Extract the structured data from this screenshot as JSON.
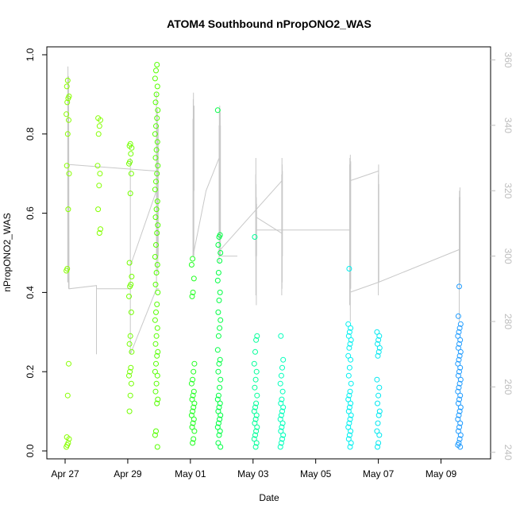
{
  "chart_data": {
    "type": "scatter",
    "title": "ATOM4 Southbound nPropONO2_WAS",
    "xlabel": "Date",
    "ylabel": "nPropONO2_WAS",
    "x_ticks": [
      {
        "date": "2018-04-27",
        "label": "Apr 27"
      },
      {
        "date": "2018-04-29",
        "label": "Apr 29"
      },
      {
        "date": "2018-05-01",
        "label": "May 01"
      },
      {
        "date": "2018-05-03",
        "label": "May 03"
      },
      {
        "date": "2018-05-05",
        "label": "May 05"
      },
      {
        "date": "2018-05-07",
        "label": "May 07"
      },
      {
        "date": "2018-05-09",
        "label": "May 09"
      }
    ],
    "xlim": [
      "2018-04-26T10:00",
      "2018-05-10T14:00"
    ],
    "ylim": [
      -0.02,
      1.02
    ],
    "y_ticks": [
      0.0,
      0.2,
      0.4,
      0.6,
      0.8,
      1.0
    ],
    "y_tick_labels": [
      "0.0",
      "0.2",
      "0.4",
      "0.6",
      "0.8",
      "1.0"
    ],
    "y2lim": [
      238,
      364
    ],
    "y2_ticks": [
      240,
      260,
      280,
      300,
      320,
      340,
      360
    ],
    "y2_tick_labels": [
      "240",
      "260",
      "280",
      "300",
      "320",
      "340",
      "360"
    ],
    "grid": false,
    "legend": "none",
    "colors": {
      "point_range": [
        "#7cfc00",
        "#00ff66",
        "#00f0f0",
        "#1e90ff"
      ],
      "trace": "#c8c8c8",
      "axis": "#000000",
      "right_axis": "#bdbdbd"
    },
    "point_clusters": [
      {
        "date": "2018-04-27T02:00",
        "color": "#88ff00",
        "values": [
          0.01,
          0.015,
          0.02,
          0.03,
          0.035,
          0.14,
          0.22,
          0.455,
          0.46,
          0.61,
          0.7,
          0.72,
          0.8,
          0.835,
          0.85,
          0.88,
          0.89,
          0.895,
          0.92,
          0.935
        ]
      },
      {
        "date": "2018-04-28T02:00",
        "color": "#84ff00",
        "values": [
          0.55,
          0.56,
          0.61,
          0.67,
          0.7,
          0.72,
          0.8,
          0.82,
          0.835,
          0.84
        ]
      },
      {
        "date": "2018-04-29T02:00",
        "color": "#73ff00",
        "values": [
          0.1,
          0.14,
          0.17,
          0.19,
          0.2,
          0.21,
          0.25,
          0.27,
          0.29,
          0.35,
          0.39,
          0.415,
          0.42,
          0.44,
          0.475,
          0.65,
          0.7,
          0.725,
          0.73,
          0.75,
          0.765,
          0.77,
          0.775
        ]
      },
      {
        "date": "2018-04-29T22:00",
        "color": "#55ff00",
        "values": [
          0.01,
          0.04,
          0.05,
          0.12,
          0.13,
          0.15,
          0.17,
          0.19,
          0.2,
          0.22,
          0.24,
          0.25,
          0.27,
          0.29,
          0.31,
          0.33,
          0.35,
          0.37,
          0.4,
          0.42,
          0.45,
          0.47,
          0.49,
          0.52,
          0.55,
          0.57,
          0.59,
          0.61,
          0.63,
          0.66,
          0.68,
          0.7,
          0.72,
          0.74,
          0.76,
          0.78,
          0.8,
          0.82,
          0.84,
          0.86,
          0.88,
          0.9,
          0.92,
          0.94,
          0.96,
          0.975
        ]
      },
      {
        "date": "2018-05-01T02:00",
        "color": "#22ff22",
        "values": [
          0.02,
          0.03,
          0.05,
          0.06,
          0.07,
          0.08,
          0.09,
          0.1,
          0.11,
          0.12,
          0.13,
          0.14,
          0.15,
          0.17,
          0.18,
          0.2,
          0.22,
          0.39,
          0.4,
          0.435,
          0.47,
          0.485
        ]
      },
      {
        "date": "2018-05-01T22:00",
        "color": "#00ff44",
        "values": [
          0.01,
          0.02,
          0.04,
          0.05,
          0.06,
          0.07,
          0.08,
          0.09,
          0.1,
          0.11,
          0.12,
          0.13,
          0.14,
          0.16,
          0.18,
          0.2,
          0.22,
          0.23,
          0.255,
          0.29,
          0.31,
          0.33,
          0.35,
          0.38,
          0.4,
          0.43,
          0.45,
          0.48,
          0.5,
          0.52,
          0.54,
          0.545,
          0.86
        ]
      },
      {
        "date": "2018-05-03T02:00",
        "color": "#00ff99",
        "values": [
          0.01,
          0.02,
          0.03,
          0.04,
          0.05,
          0.06,
          0.07,
          0.08,
          0.09,
          0.1,
          0.11,
          0.12,
          0.14,
          0.16,
          0.18,
          0.2,
          0.22,
          0.25,
          0.28,
          0.29,
          0.54
        ]
      },
      {
        "date": "2018-05-03T22:00",
        "color": "#00ffbb",
        "values": [
          0.01,
          0.02,
          0.03,
          0.04,
          0.05,
          0.06,
          0.07,
          0.08,
          0.09,
          0.1,
          0.11,
          0.12,
          0.13,
          0.15,
          0.17,
          0.19,
          0.21,
          0.23,
          0.29
        ]
      },
      {
        "date": "2018-05-06T02:00",
        "color": "#00f0f0",
        "values": [
          0.01,
          0.02,
          0.03,
          0.04,
          0.05,
          0.06,
          0.07,
          0.08,
          0.09,
          0.1,
          0.11,
          0.12,
          0.13,
          0.14,
          0.15,
          0.17,
          0.19,
          0.21,
          0.23,
          0.24,
          0.26,
          0.27,
          0.28,
          0.29,
          0.3,
          0.31,
          0.32,
          0.46
        ]
      },
      {
        "date": "2018-05-07T00:00",
        "color": "#00e8f0",
        "values": [
          0.01,
          0.02,
          0.04,
          0.05,
          0.07,
          0.09,
          0.1,
          0.12,
          0.14,
          0.16,
          0.18,
          0.24,
          0.25,
          0.26,
          0.27,
          0.28,
          0.29,
          0.3
        ]
      },
      {
        "date": "2018-05-09T14:00",
        "color": "#1e9bff",
        "values": [
          0.01,
          0.015,
          0.02,
          0.03,
          0.04,
          0.05,
          0.06,
          0.07,
          0.08,
          0.09,
          0.1,
          0.11,
          0.12,
          0.13,
          0.14,
          0.15,
          0.16,
          0.17,
          0.18,
          0.19,
          0.2,
          0.21,
          0.22,
          0.23,
          0.24,
          0.25,
          0.26,
          0.27,
          0.28,
          0.29,
          0.3,
          0.31,
          0.32,
          0.34,
          0.415
        ]
      }
    ],
    "trace_series": [
      {
        "x": [
          "2018-04-27T02:00",
          "2018-04-27T02:00",
          "2018-04-27T02:10",
          "2018-04-27T02:10",
          "2018-04-27T02:20",
          "2018-04-27T02:20",
          "2018-04-27T02:30",
          "2018-04-27T02:30",
          "2018-04-27T02:40",
          "2018-04-27T02:40",
          "2018-04-27T03:00",
          "2018-04-28T00:00",
          "2018-04-28T00:00",
          "2018-04-28T00:00",
          "2018-04-29T02:00",
          "2018-04-29T02:00",
          "2018-04-29T02:00",
          "2018-04-29T22:00",
          "2018-04-29T22:00",
          "2018-04-29T22:00",
          "2018-04-29T22:20",
          "2018-04-29T22:20",
          "2018-04-29T22:40",
          "2018-04-29T22:40",
          "2018-04-29T23:00",
          "2018-04-29T23:00",
          "2018-04-29T23:20",
          "2018-04-29T23:20"
        ],
        "y": [
          292,
          355,
          292,
          358,
          320,
          352,
          300,
          345,
          290,
          355,
          290,
          291,
          270,
          290,
          290,
          330,
          270,
          290,
          350,
          290,
          340,
          300,
          345,
          305,
          335,
          295,
          340,
          300
        ]
      },
      {
        "x": [
          "2018-04-27T03:00",
          "2018-04-29T22:00"
        ],
        "y": [
          328,
          326
        ]
      },
      {
        "x": [
          "2018-04-29T02:00",
          "2018-04-29T22:00"
        ],
        "y": [
          297,
          320
        ]
      },
      {
        "x": [
          "2018-04-29T22:00",
          "2018-04-30T00:00"
        ],
        "y": [
          290,
          290
        ]
      },
      {
        "x": [
          "2018-05-01T02:00",
          "2018-05-01T02:00",
          "2018-05-01T02:10",
          "2018-05-01T02:10",
          "2018-05-01T02:20",
          "2018-05-01T02:20",
          "2018-05-01T02:30",
          "2018-05-01T02:30",
          "2018-05-01T02:40",
          "2018-05-01T02:40",
          "2018-05-01T02:50",
          "2018-05-01T02:50"
        ],
        "y": [
          300,
          342,
          305,
          348,
          300,
          350,
          315,
          345,
          300,
          340,
          320,
          346
        ]
      },
      {
        "x": [
          "2018-05-01T02:00",
          "2018-05-01T12:00",
          "2018-05-01T22:00"
        ],
        "y": [
          300,
          320,
          330
        ]
      },
      {
        "x": [
          "2018-05-01T22:00",
          "2018-05-01T22:00",
          "2018-05-01T22:10",
          "2018-05-01T22:10",
          "2018-05-01T22:20",
          "2018-05-01T22:20",
          "2018-05-01T22:30",
          "2018-05-01T22:30",
          "2018-05-01T22:40",
          "2018-05-01T22:40",
          "2018-05-01T22:50",
          "2018-05-01T22:50",
          "2018-05-01T23:00",
          "2018-05-01T23:00"
        ],
        "y": [
          298,
          340,
          302,
          345,
          300,
          338,
          310,
          346,
          305,
          345,
          320,
          344,
          300,
          340
        ]
      },
      {
        "x": [
          "2018-05-01T22:00",
          "2018-05-02T12:00"
        ],
        "y": [
          300,
          300
        ]
      },
      {
        "x": [
          "2018-05-01T23:00",
          "2018-05-03T22:00"
        ],
        "y": [
          302,
          323
        ]
      },
      {
        "x": [
          "2018-05-03T02:00",
          "2018-05-03T02:00",
          "2018-05-03T02:10",
          "2018-05-03T02:10",
          "2018-05-03T02:20",
          "2018-05-03T02:20",
          "2018-05-03T02:30",
          "2018-05-03T02:30",
          "2018-05-03T02:40",
          "2018-05-03T02:40"
        ],
        "y": [
          300,
          325,
          288,
          330,
          295,
          322,
          285,
          318,
          300,
          316
        ]
      },
      {
        "x": [
          "2018-05-03T02:00",
          "2018-05-03T22:00"
        ],
        "y": [
          312,
          307
        ]
      },
      {
        "x": [
          "2018-05-03T02:40",
          "2018-05-06T02:00"
        ],
        "y": [
          308,
          308
        ]
      },
      {
        "x": [
          "2018-05-03T22:00",
          "2018-05-03T22:00",
          "2018-05-03T22:10",
          "2018-05-03T22:10",
          "2018-05-03T22:20",
          "2018-05-03T22:20",
          "2018-05-03T22:30",
          "2018-05-03T22:30"
        ],
        "y": [
          288,
          325,
          290,
          330,
          292,
          328,
          300,
          326
        ]
      },
      {
        "x": [
          "2018-05-06T02:00",
          "2018-05-06T02:00",
          "2018-05-06T02:10",
          "2018-05-06T02:10",
          "2018-05-06T02:20",
          "2018-05-06T02:20",
          "2018-05-06T02:30",
          "2018-05-06T02:30",
          "2018-05-06T02:40",
          "2018-05-06T02:40",
          "2018-05-06T02:50",
          "2018-05-06T02:50"
        ],
        "y": [
          285,
          328,
          290,
          330,
          300,
          325,
          280,
          331,
          295,
          324,
          290,
          329
        ]
      },
      {
        "x": [
          "2018-05-06T02:00",
          "2018-05-07T00:00"
        ],
        "y": [
          323,
          326
        ]
      },
      {
        "x": [
          "2018-05-06T02:50",
          "2018-05-07T00:00"
        ],
        "y": [
          289,
          292
        ]
      },
      {
        "x": [
          "2018-05-07T00:00",
          "2018-05-07T00:00",
          "2018-05-07T00:10",
          "2018-05-07T00:10",
          "2018-05-07T00:20",
          "2018-05-07T00:20"
        ],
        "y": [
          288,
          325,
          300,
          328,
          292,
          322
        ]
      },
      {
        "x": [
          "2018-05-07T00:00",
          "2018-05-09T14:00"
        ],
        "y": [
          292,
          302
        ]
      },
      {
        "x": [
          "2018-05-09T14:00",
          "2018-05-09T14:00",
          "2018-05-09T14:10",
          "2018-05-09T14:10",
          "2018-05-09T14:20",
          "2018-05-09T14:20",
          "2018-05-09T14:30",
          "2018-05-09T14:30",
          "2018-05-09T14:40",
          "2018-05-09T14:40"
        ],
        "y": [
          280,
          318,
          290,
          320,
          300,
          316,
          295,
          321,
          292,
          318
        ]
      }
    ]
  }
}
